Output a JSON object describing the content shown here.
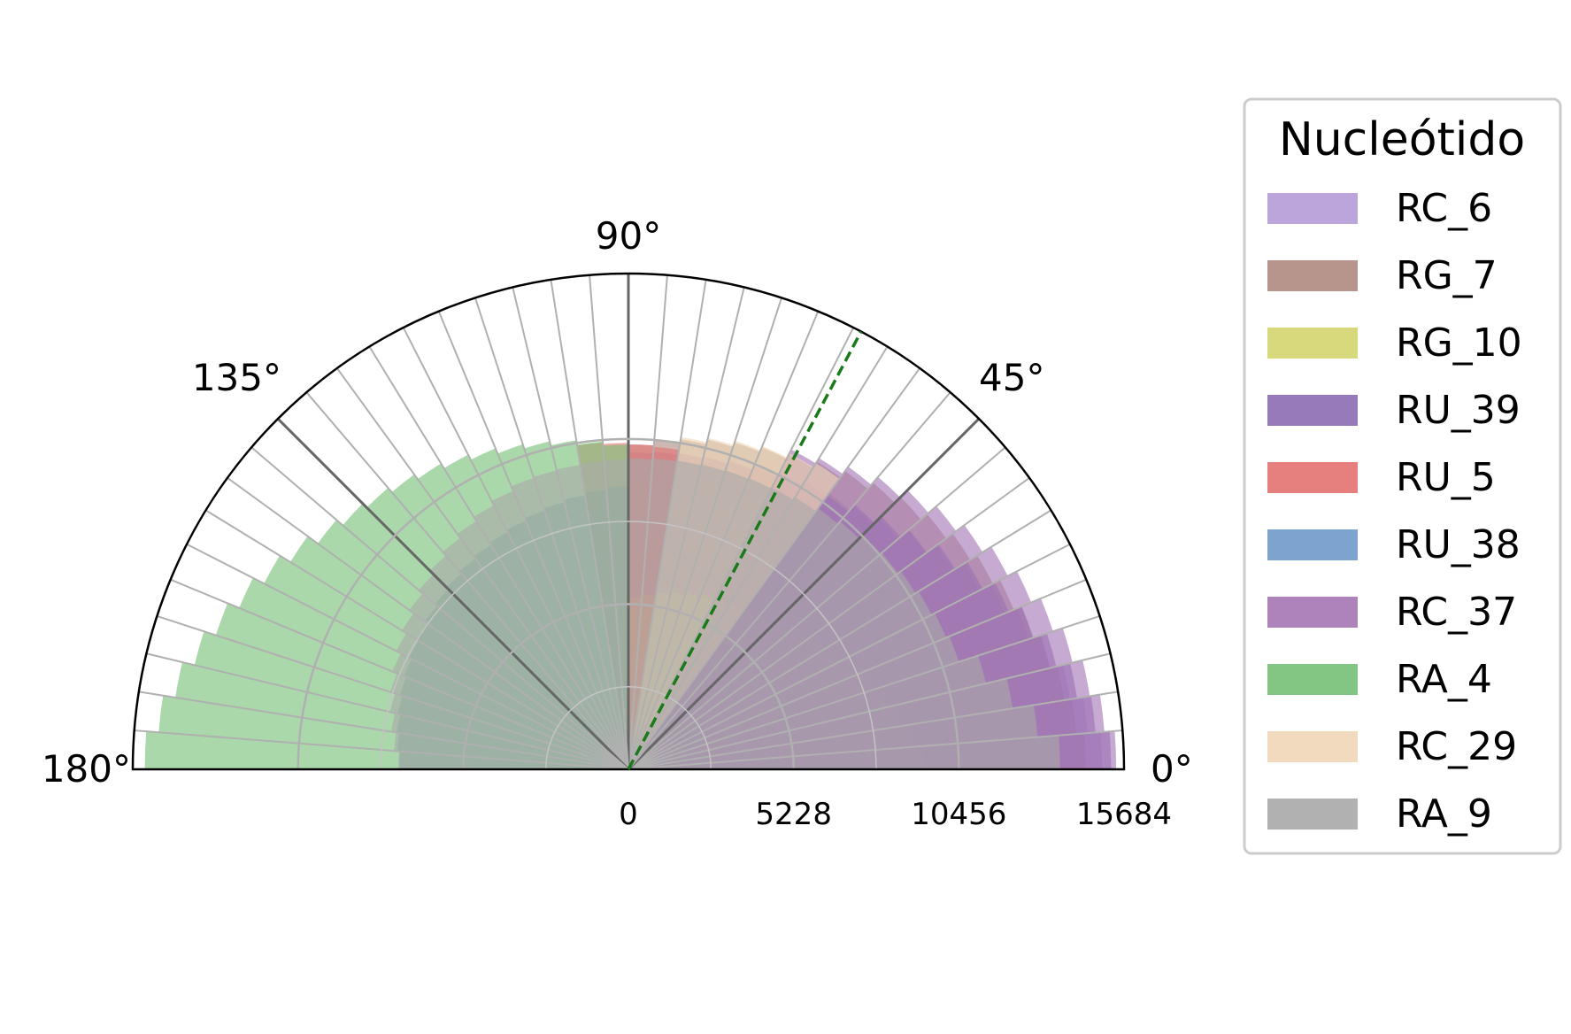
{
  "chart_data": {
    "type": "polar-bar",
    "title": "",
    "theta_range_deg": [
      0,
      180
    ],
    "angle_ticks": [
      {
        "deg": 0,
        "label": "0°"
      },
      {
        "deg": 45,
        "label": "45°"
      },
      {
        "deg": 90,
        "label": "90°"
      },
      {
        "deg": 135,
        "label": "135°"
      },
      {
        "deg": 180,
        "label": "180°"
      }
    ],
    "radial_ticks": [
      {
        "value": 0,
        "label": "0"
      },
      {
        "value": 5228,
        "label": "5228"
      },
      {
        "value": 10456,
        "label": "10456"
      },
      {
        "value": 15684,
        "label": "15684"
      }
    ],
    "rlim": [
      0,
      15684
    ],
    "bin_width_deg": 4.5,
    "reference_line_deg": 62,
    "reference_line_color": "#1a7a1a",
    "grid": true,
    "legend": {
      "title": "Nucleótido",
      "placement": "right"
    },
    "series": [
      {
        "name": "RC_6",
        "color": "#b59bd6",
        "segments": [
          {
            "from": 0,
            "to": 45,
            "r0": 15200,
            "r1": 11000
          },
          {
            "from": 45,
            "to": 72,
            "r0": 11000,
            "r1": 10200
          },
          {
            "from": 72,
            "to": 90,
            "r0": 10200,
            "r1": 10000
          }
        ]
      },
      {
        "name": "RG_7",
        "color": "#b08a80",
        "segments": [
          {
            "from": 0,
            "to": 60,
            "r0": 14600,
            "r1": 11200
          },
          {
            "from": 60,
            "to": 90,
            "r0": 11200,
            "r1": 10200
          }
        ]
      },
      {
        "name": "RG_10",
        "color": "#d4d46e",
        "segments": [
          {
            "from": 0,
            "to": 45,
            "r0": 9500,
            "r1": 6500
          },
          {
            "from": 45,
            "to": 90,
            "r0": 6500,
            "r1": 5400
          }
        ]
      },
      {
        "name": "RU_39",
        "color": "#8c6bb1",
        "segments": [
          {
            "from": 0,
            "to": 40,
            "r0": 15500,
            "r1": 11500
          },
          {
            "from": 40,
            "to": 55,
            "r0": 11500,
            "r1": 10500
          }
        ]
      },
      {
        "name": "RU_5",
        "color": "#e37271",
        "segments": [
          {
            "from": 80,
            "to": 100,
            "r0": 10200,
            "r1": 10400
          }
        ]
      },
      {
        "name": "RU_38",
        "color": "#6f9ac9",
        "segments": [
          {
            "from": 90,
            "to": 180,
            "r0": 9000,
            "r1": 7200
          }
        ]
      },
      {
        "name": "RC_37",
        "color": "#a576b5",
        "segments": [
          {
            "from": 0,
            "to": 55,
            "r0": 15600,
            "r1": 11600
          },
          {
            "from": 55,
            "to": 62,
            "r0": 11600,
            "r1": 11300
          }
        ]
      },
      {
        "name": "RA_4",
        "color": "#76c076",
        "segments": [
          {
            "from": 90,
            "to": 110,
            "r0": 10200,
            "r1": 10800
          },
          {
            "from": 110,
            "to": 140,
            "r0": 10800,
            "r1": 12000
          },
          {
            "from": 140,
            "to": 180,
            "r0": 12000,
            "r1": 15500
          }
        ]
      },
      {
        "name": "RC_29",
        "color": "#efd6b6",
        "segments": [
          {
            "from": 55,
            "to": 80,
            "r0": 11400,
            "r1": 10600
          }
        ]
      },
      {
        "name": "RA_9",
        "color": "#a9a9a9",
        "segments": [
          {
            "from": 0,
            "to": 20,
            "r0": 14000,
            "r1": 11000
          },
          {
            "from": 20,
            "to": 60,
            "r0": 11000,
            "r1": 10000
          },
          {
            "from": 60,
            "to": 110,
            "r0": 10000,
            "r1": 9700
          },
          {
            "from": 110,
            "to": 180,
            "r0": 9700,
            "r1": 7200
          }
        ]
      }
    ]
  }
}
